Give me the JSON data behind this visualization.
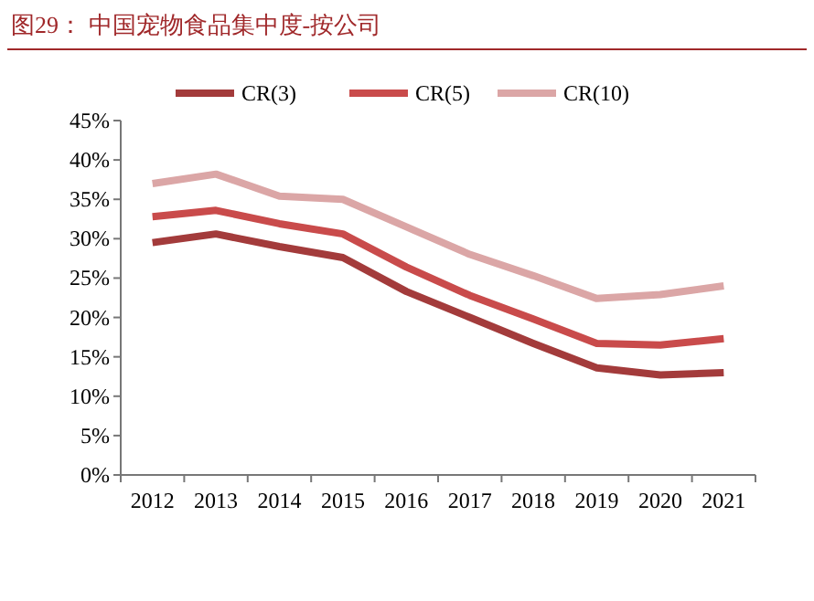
{
  "chart_data": {
    "type": "line",
    "title": "图29： 中国宠物食品集中度-按公司",
    "categories": [
      "2012",
      "2013",
      "2014",
      "2015",
      "2016",
      "2017",
      "2018",
      "2019",
      "2020",
      "2021"
    ],
    "series": [
      {
        "name": "CR(3)",
        "color": "#a33b3b",
        "values": [
          29.5,
          30.6,
          29.0,
          27.6,
          23.3,
          20.0,
          16.7,
          13.6,
          12.7,
          13.0
        ]
      },
      {
        "name": "CR(5)",
        "color": "#c94b4b",
        "values": [
          32.8,
          33.6,
          31.9,
          30.6,
          26.4,
          22.8,
          19.8,
          16.7,
          16.5,
          17.3
        ]
      },
      {
        "name": "CR(10)",
        "color": "#dba6a6",
        "values": [
          37.0,
          38.2,
          35.4,
          35.0,
          31.5,
          28.0,
          25.3,
          22.4,
          22.9,
          24.0
        ]
      }
    ],
    "ylim": [
      0,
      45
    ],
    "yticks": [
      {
        "value": 0,
        "label": "0%"
      },
      {
        "value": 5,
        "label": "5%"
      },
      {
        "value": 10,
        "label": "10%"
      },
      {
        "value": 15,
        "label": "15%"
      },
      {
        "value": 20,
        "label": "20%"
      },
      {
        "value": 25,
        "label": "25%"
      },
      {
        "value": 30,
        "label": "30%"
      },
      {
        "value": 35,
        "label": "35%"
      },
      {
        "value": 40,
        "label": "40%"
      },
      {
        "value": 45,
        "label": "45%"
      }
    ],
    "legend": "top",
    "grid": false,
    "marker": "none",
    "line_style": "solid"
  }
}
